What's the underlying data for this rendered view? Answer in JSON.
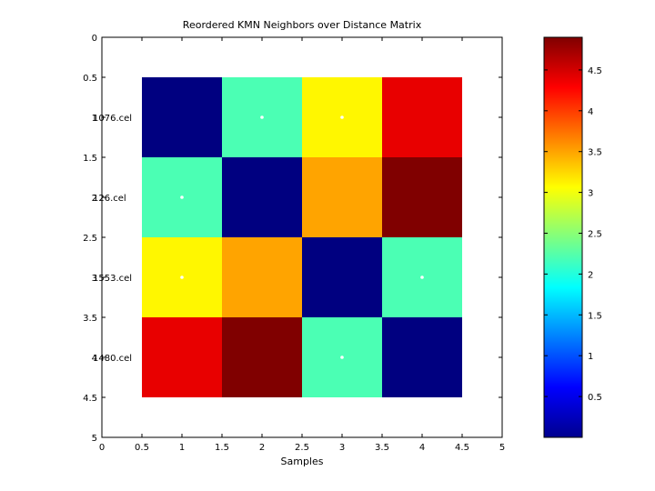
{
  "chart_data": {
    "type": "heatmap",
    "title": "Reordered KMN Neighbors over Distance Matrix",
    "xlabel": "Samples",
    "ylabel": "",
    "xlim": [
      0,
      5
    ],
    "ylim": [
      0,
      5
    ],
    "x_ticks": [
      "0",
      "0.5",
      "1",
      "1.5",
      "2",
      "2.5",
      "3",
      "3.5",
      "4",
      "4.5",
      "5"
    ],
    "y_ticks": [
      "0",
      "0.5",
      "1",
      "1.5",
      "2",
      "2.5",
      "3",
      "3.5",
      "4",
      "4.5",
      "5"
    ],
    "y_tick_values": [
      0,
      0.5,
      1,
      1.5,
      2,
      2.5,
      3,
      3.5,
      4,
      4.5,
      5
    ],
    "row_labels": [
      "1076.cel",
      "126.cel",
      "1553.cel",
      "1480.cel"
    ],
    "matrix": [
      [
        0.0,
        2.2,
        3.1,
        4.4
      ],
      [
        2.2,
        0.0,
        3.5,
        4.9
      ],
      [
        3.1,
        3.5,
        0.0,
        2.2
      ],
      [
        4.4,
        4.9,
        2.2,
        0.0
      ]
    ],
    "neighbors": [
      [
        1,
        2
      ],
      [
        1,
        3
      ],
      [
        2,
        1
      ],
      [
        3,
        1
      ],
      [
        3,
        4
      ],
      [
        4,
        3
      ]
    ],
    "colorbar": {
      "min": 0,
      "max": 4.9,
      "ticks": [
        0.5,
        1,
        1.5,
        2,
        2.5,
        3,
        3.5,
        4,
        4.5
      ],
      "tick_labels": [
        "0.5",
        "1",
        "1.5",
        "2",
        "2.5",
        "3",
        "3.5",
        "4",
        "4.5"
      ],
      "colormap": "jet"
    },
    "grid": false
  }
}
